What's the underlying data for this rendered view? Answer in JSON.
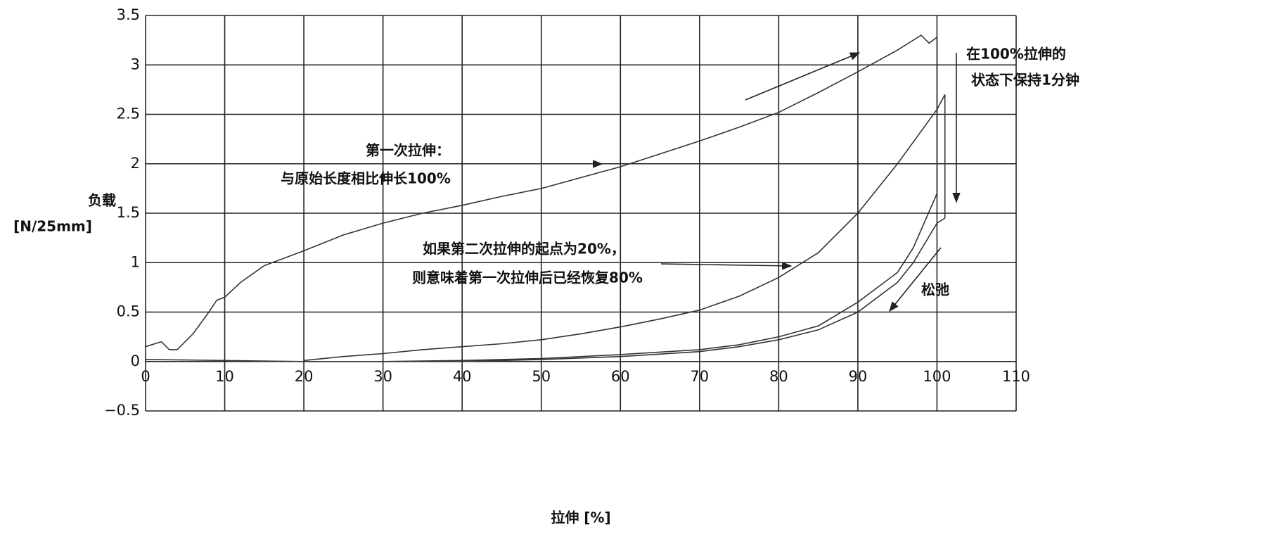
{
  "chart_data": {
    "type": "line",
    "xlabel": "拉伸 [%]",
    "ylabel": [
      "负载",
      "[N/25mm]"
    ],
    "xlim": [
      0,
      110
    ],
    "ylim": [
      -0.5,
      3.5
    ],
    "xticks": [
      0,
      10,
      20,
      30,
      40,
      50,
      60,
      70,
      80,
      90,
      100,
      110
    ],
    "yticks": [
      {
        "value": -0.5,
        "label": "−0.5"
      },
      0,
      0.5,
      1,
      1.5,
      2,
      2.5,
      3,
      3.5
    ],
    "grid": true,
    "series": [
      {
        "color": "#333333",
        "x": [
          0,
          2,
          3,
          4,
          6,
          8,
          9,
          10,
          12,
          15,
          20,
          25,
          30,
          35,
          40,
          45,
          50,
          55,
          60,
          65,
          70,
          75,
          80,
          85,
          90,
          95,
          98,
          99,
          100,
          100
        ],
        "values": [
          0.15,
          0.2,
          0.12,
          0.12,
          0.28,
          0.5,
          0.62,
          0.65,
          0.8,
          0.97,
          1.12,
          1.28,
          1.4,
          1.5,
          1.58,
          1.67,
          1.75,
          1.86,
          1.97,
          2.1,
          2.23,
          2.37,
          2.52,
          2.72,
          2.93,
          3.15,
          3.3,
          3.22,
          3.28,
          1.7
        ]
      },
      {
        "color": "#333333",
        "x": [
          100,
          97,
          95,
          90,
          85,
          80,
          75,
          70,
          60,
          50,
          40,
          30,
          20,
          10,
          0
        ],
        "values": [
          1.7,
          1.15,
          0.9,
          0.6,
          0.36,
          0.25,
          0.17,
          0.12,
          0.07,
          0.03,
          0.01,
          0,
          0,
          0.01,
          0.02
        ]
      },
      {
        "color": "#333333",
        "x": [
          20,
          25,
          30,
          35,
          40,
          45,
          50,
          55,
          60,
          65,
          70,
          75,
          80,
          85,
          90,
          95,
          100,
          101,
          101
        ],
        "values": [
          0.01,
          0.05,
          0.08,
          0.12,
          0.15,
          0.18,
          0.22,
          0.28,
          0.35,
          0.43,
          0.52,
          0.66,
          0.85,
          1.1,
          1.5,
          2.0,
          2.55,
          2.7,
          1.45
        ]
      },
      {
        "color": "#333333",
        "x": [
          101,
          100,
          97,
          95,
          90,
          85,
          80,
          75,
          70,
          60,
          50,
          40,
          30
        ],
        "values": [
          1.45,
          1.4,
          1.0,
          0.8,
          0.5,
          0.32,
          0.22,
          0.15,
          0.1,
          0.05,
          0.02,
          0,
          0
        ]
      }
    ],
    "annotations": [
      {
        "lines": [
          "第一次拉伸：",
          "与原始长度相比伸长100%"
        ]
      },
      {
        "lines": [
          "如果第二次拉伸的起点为20%，",
          "则意味着第一次拉伸后已经恢复80%"
        ]
      },
      {
        "lines": [
          "在100%拉伸的",
          "状态下保持1分钟"
        ]
      },
      {
        "lines": [
          "松弛"
        ]
      }
    ]
  }
}
